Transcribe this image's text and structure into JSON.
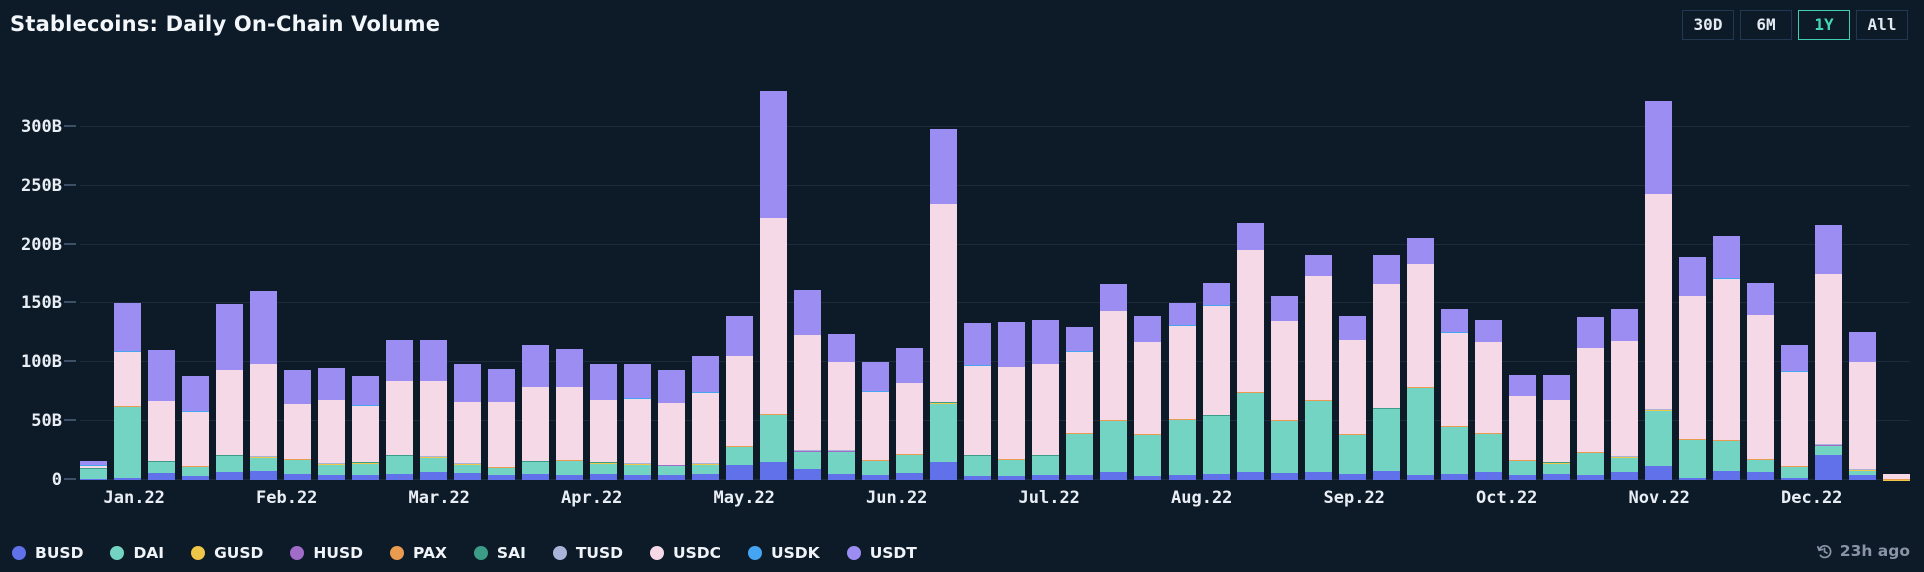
{
  "header": {
    "title": "Stablecoins: Daily On-Chain Volume",
    "ranges": [
      {
        "label": "30D",
        "active": false
      },
      {
        "label": "6M",
        "active": false
      },
      {
        "label": "1Y",
        "active": true
      },
      {
        "label": "All",
        "active": false
      }
    ]
  },
  "footer": {
    "updated": "23h ago",
    "clock_icon": "history-clock-icon"
  },
  "chart_data": {
    "type": "bar",
    "stacked": true,
    "title": "Stablecoins: Daily On-Chain Volume",
    "unit": "B (billions USD)",
    "grid": true,
    "legend_position": "bottom",
    "ylim": [
      0,
      350
    ],
    "ytick_values": [
      0,
      50,
      100,
      150,
      200,
      250,
      300
    ],
    "ytick_labels": [
      "0",
      "50B",
      "100B",
      "150B",
      "200B",
      "250B",
      "300B"
    ],
    "months": [
      "Jan.22",
      "Feb.22",
      "Mar.22",
      "Apr.22",
      "May.22",
      "Jun.22",
      "Jul.22",
      "Aug.22",
      "Sep.22",
      "Oct.22",
      "Nov.22",
      "Dec.22"
    ],
    "bars_per_month": 4.5,
    "series": [
      {
        "name": "BUSD",
        "color": "#6171e9",
        "values": [
          1,
          2,
          6,
          3,
          7,
          8,
          5,
          4,
          4,
          5,
          7,
          6,
          4,
          5,
          4,
          5,
          4,
          4,
          5,
          13,
          15,
          9,
          5,
          4,
          6,
          15,
          3,
          3,
          4,
          4,
          7,
          3,
          4,
          5,
          7,
          6,
          7,
          5,
          8,
          4,
          5,
          7,
          4,
          5,
          4,
          7,
          12,
          2,
          8,
          7,
          2,
          21,
          4,
          0
        ]
      },
      {
        "name": "DAI",
        "color": "#74d4c4",
        "values": [
          8,
          60,
          9,
          8,
          13,
          11,
          12,
          9,
          10,
          15,
          12,
          7,
          6,
          10,
          12,
          9,
          9,
          8,
          8,
          15,
          40,
          15,
          19,
          12,
          15,
          50,
          17,
          14,
          16,
          35,
          43,
          35,
          47,
          49,
          67,
          44,
          60,
          33,
          52,
          74,
          40,
          32,
          12,
          9,
          19,
          12,
          47,
          32,
          25,
          10,
          9,
          8,
          4,
          0
        ]
      },
      {
        "name": "GUSD",
        "color": "#eec648",
        "uniform": 0.2
      },
      {
        "name": "HUSD",
        "color": "#a06cc8",
        "uniform": 0.15
      },
      {
        "name": "PAX",
        "color": "#e99b50",
        "uniform": 0.35
      },
      {
        "name": "SAI",
        "color": "#3b9c88",
        "uniform": 0.2
      },
      {
        "name": "TUSD",
        "color": "#a9b5d8",
        "uniform": 0.3
      },
      {
        "name": "USDC",
        "color": "#f5d9e7",
        "values": [
          2,
          46,
          51,
          46,
          72,
          78,
          46,
          54,
          48,
          63,
          64,
          52,
          55,
          63,
          62,
          53,
          55,
          52,
          60,
          76,
          166,
          98,
          75,
          58,
          60,
          168,
          76,
          78,
          77,
          69,
          92,
          78,
          79,
          93,
          120,
          84,
          105,
          80,
          105,
          104,
          79,
          77,
          54,
          53,
          88,
          98,
          183,
          121,
          137,
          122,
          80,
          145,
          91,
          4
        ]
      },
      {
        "name": "USDK",
        "color": "#46a5f2",
        "uniform": 0.2
      },
      {
        "name": "USDT",
        "color": "#9b8df1",
        "values": [
          4,
          41,
          43,
          30,
          56,
          62,
          29,
          27,
          25,
          35,
          35,
          32,
          28,
          35,
          32,
          30,
          29,
          28,
          31,
          34,
          108,
          38,
          24,
          25,
          30,
          64,
          36,
          38,
          38,
          21,
          23,
          22,
          19,
          19,
          23,
          21,
          18,
          20,
          25,
          22,
          20,
          19,
          18,
          21,
          26,
          27,
          79,
          33,
          36,
          27,
          22,
          41,
          25,
          0
        ]
      }
    ]
  }
}
